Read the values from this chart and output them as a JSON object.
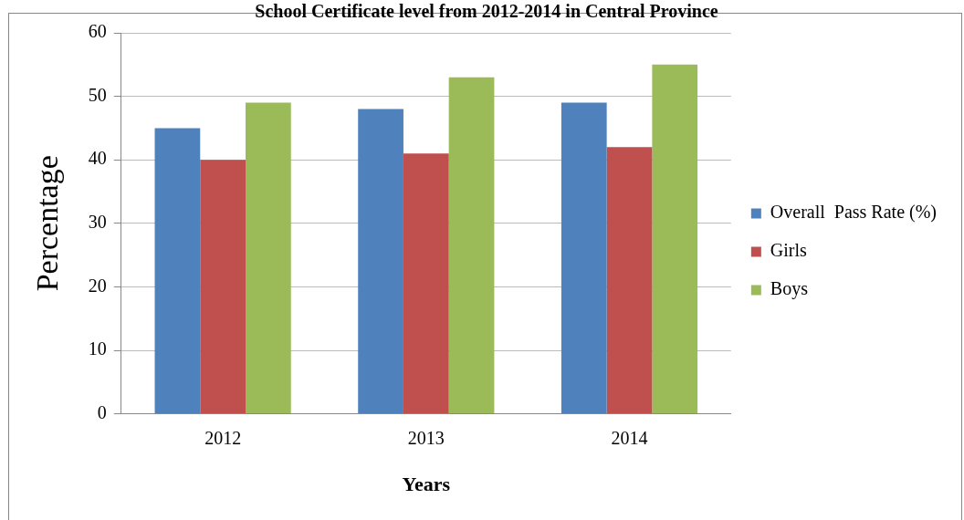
{
  "chart_data": {
    "type": "bar",
    "title": "School Certificate level from 2012-2014 in Central Province",
    "xlabel": "Years",
    "ylabel": "Percentage",
    "categories": [
      "2012",
      "2013",
      "2014"
    ],
    "series": [
      {
        "name": "Overall  Pass Rate (%)",
        "color": "#4f81bd",
        "values": [
          45,
          48,
          49
        ]
      },
      {
        "name": "Girls",
        "color": "#c0504d",
        "values": [
          40,
          41,
          42
        ]
      },
      {
        "name": "Boys",
        "color": "#9bbb59",
        "values": [
          49,
          53,
          55
        ]
      }
    ],
    "ylim": [
      0,
      60
    ],
    "yticks": [
      0,
      10,
      20,
      30,
      40,
      50,
      60
    ],
    "grid": "y",
    "legend": "right"
  }
}
